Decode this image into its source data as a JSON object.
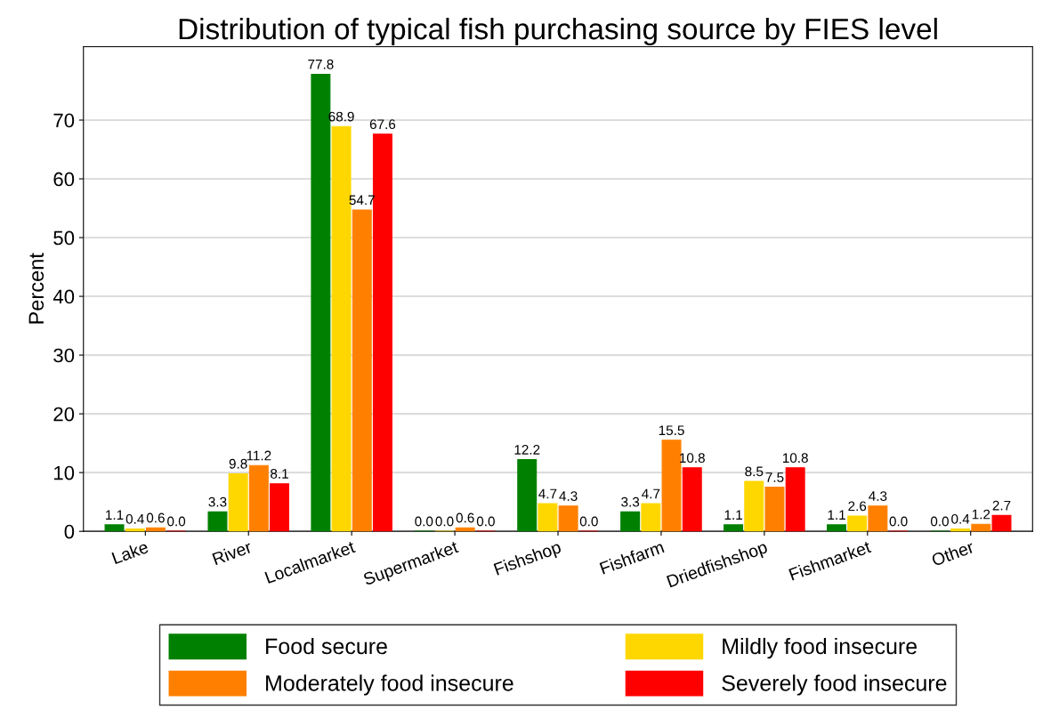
{
  "chart_data": {
    "type": "bar",
    "title": "Distribution of typical fish purchasing source by FIES level",
    "ylabel": "Percent",
    "categories": [
      "Lake",
      "River",
      "Localmarket",
      "Supermarket",
      "Fishshop",
      "Fishfarm",
      "Driedfishshop",
      "Fishmarket",
      "Other"
    ],
    "series": [
      {
        "name": "Food secure",
        "color": "#008000",
        "values": [
          1.1,
          3.3,
          77.8,
          0.0,
          12.2,
          3.3,
          1.1,
          1.1,
          0.0
        ],
        "value_labels": [
          "1.1",
          "3.3",
          "77.8",
          "0.0",
          "12.2",
          "3.3",
          "1.1",
          "1.1",
          "0.0"
        ]
      },
      {
        "name": "Mildly food insecure",
        "color": "#ffd700",
        "values": [
          0.4,
          9.8,
          68.9,
          0.0,
          4.7,
          4.7,
          8.5,
          2.6,
          0.4
        ],
        "value_labels": [
          "0.4",
          "9.8",
          "68.9",
          "0.0",
          "4.7",
          "4.7",
          "8.5",
          "2.6",
          "0.4"
        ]
      },
      {
        "name": "Moderately food insecure",
        "color": "#ff8000",
        "values": [
          0.6,
          11.2,
          54.7,
          0.6,
          4.3,
          15.5,
          7.5,
          4.3,
          1.2
        ],
        "value_labels": [
          "0.6",
          "11.2",
          "54.7",
          "0.6",
          "4.3",
          "15.5",
          "7.5",
          "4.3",
          "1.2"
        ]
      },
      {
        "name": "Severely food insecure",
        "color": "#ff0000",
        "values": [
          0.0,
          8.1,
          67.6,
          0.0,
          0.0,
          10.8,
          10.8,
          0.0,
          2.7
        ],
        "value_labels": [
          "0.0",
          "8.1",
          "67.6",
          "0.0",
          "0.0",
          "10.8",
          "10.8",
          "0.0",
          "2.7"
        ]
      }
    ],
    "ylim": [
      0,
      82.5
    ],
    "yticks": [
      0,
      10,
      20,
      30,
      40,
      50,
      60,
      70
    ],
    "grid": "y",
    "legend": "bottom"
  }
}
